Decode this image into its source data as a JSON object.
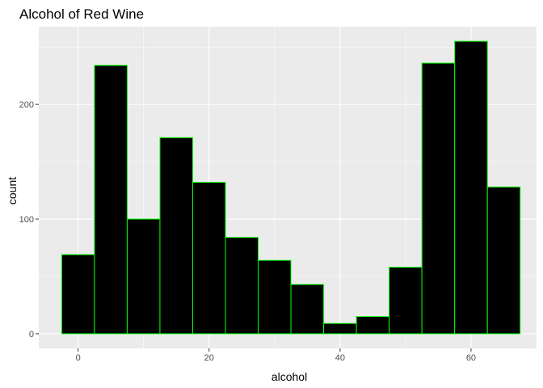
{
  "chart_data": {
    "type": "bar",
    "title": "Alcohol of Red Wine",
    "xlabel": "alcohol",
    "ylabel": "count",
    "bin_width": 5,
    "bins": [
      {
        "x0": -2.5,
        "x1": 2.5,
        "count": 69
      },
      {
        "x0": 2.5,
        "x1": 7.5,
        "count": 234
      },
      {
        "x0": 7.5,
        "x1": 12.5,
        "count": 100
      },
      {
        "x0": 12.5,
        "x1": 17.5,
        "count": 171
      },
      {
        "x0": 17.5,
        "x1": 22.5,
        "count": 132
      },
      {
        "x0": 22.5,
        "x1": 27.5,
        "count": 84
      },
      {
        "x0": 27.5,
        "x1": 32.5,
        "count": 64
      },
      {
        "x0": 32.5,
        "x1": 37.5,
        "count": 43
      },
      {
        "x0": 37.5,
        "x1": 42.5,
        "count": 9
      },
      {
        "x0": 42.5,
        "x1": 47.5,
        "count": 15
      },
      {
        "x0": 47.5,
        "x1": 52.5,
        "count": 58
      },
      {
        "x0": 52.5,
        "x1": 57.5,
        "count": 236
      },
      {
        "x0": 57.5,
        "x1": 62.5,
        "count": 255
      },
      {
        "x0": 62.5,
        "x1": 67.5,
        "count": 128
      }
    ],
    "xlim": [
      -6,
      70
    ],
    "ylim": [
      -12.75,
      267.75
    ],
    "x_ticks": [
      0,
      20,
      40,
      60
    ],
    "x_tick_labels": [
      "0",
      "20",
      "40",
      "60"
    ],
    "y_ticks": [
      0,
      100,
      200
    ],
    "y_tick_labels": [
      "0",
      "100",
      "200"
    ],
    "grid": true,
    "colors": {
      "panel_background": "#ebebeb",
      "grid_major": "#ffffff",
      "bar_fill": "#000000",
      "bar_outline": "#00ff00",
      "tick_text": "#4d4d4d"
    }
  }
}
